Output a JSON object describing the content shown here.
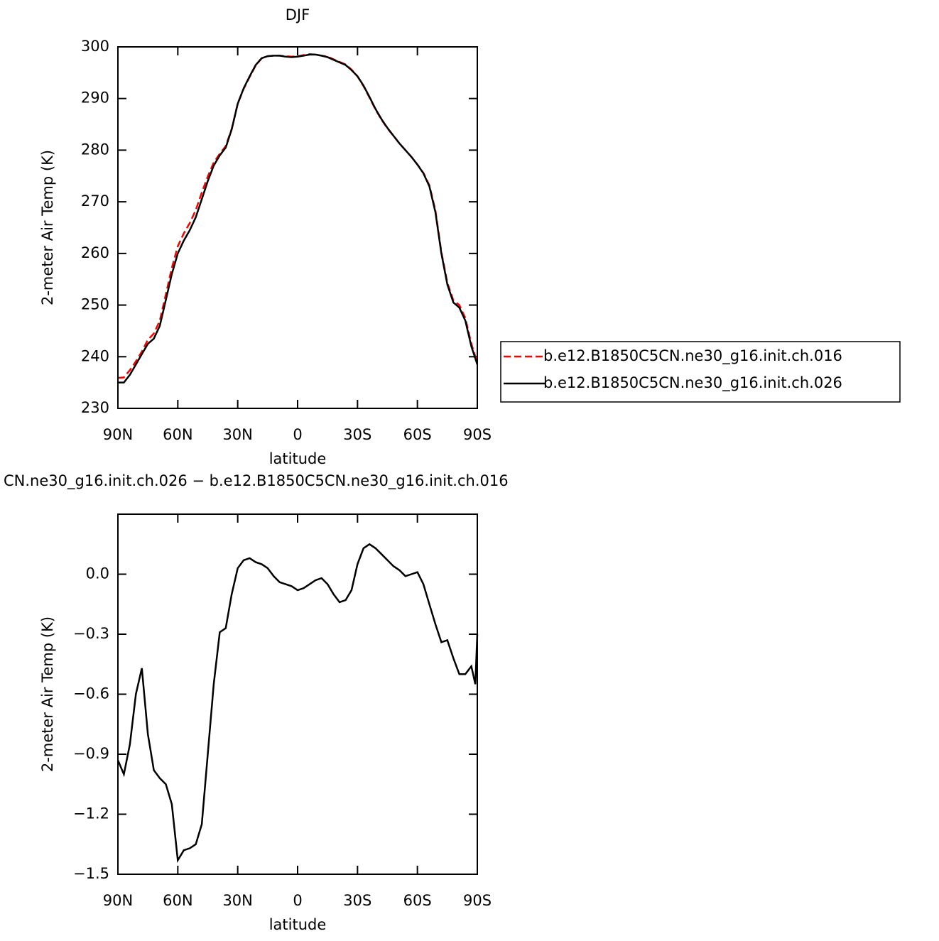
{
  "chart_data": [
    {
      "type": "line",
      "title": "DJF",
      "x_label": "latitude",
      "y_label": "2-meter Air Temp (K)",
      "x": [
        90,
        87,
        84,
        81,
        78,
        75,
        72,
        69,
        66,
        63,
        60,
        57,
        54,
        51,
        48,
        45,
        42,
        39,
        36,
        33,
        30,
        27,
        24,
        21,
        18,
        15,
        12,
        9,
        6,
        3,
        0,
        -3,
        -6,
        -9,
        -12,
        -15,
        -18,
        -21,
        -24,
        -27,
        -30,
        -33,
        -36,
        -39,
        -42,
        -45,
        -48,
        -51,
        -54,
        -57,
        -60,
        -63,
        -66,
        -69,
        -72,
        -75,
        -78,
        -81,
        -84,
        -87,
        -90
      ],
      "xlim": [
        90,
        -90
      ],
      "xticks": [
        {
          "value": 90,
          "label": "90N"
        },
        {
          "value": 60,
          "label": "60N"
        },
        {
          "value": 30,
          "label": "30N"
        },
        0,
        {
          "value": -30,
          "label": "30S"
        },
        {
          "value": -60,
          "label": "60S"
        },
        {
          "value": -90,
          "label": "90S"
        }
      ],
      "ylim": [
        230,
        300
      ],
      "yticks": [
        230,
        240,
        250,
        260,
        270,
        280,
        290,
        300
      ],
      "legend": "outside-right",
      "series": [
        {
          "name": "b.e12.B1850C5CN.ne30_g16.init.ch.016",
          "color": "#ff0000",
          "dash": "dashed",
          "values": [
            235.9,
            236.0,
            237.4,
            239.1,
            241.0,
            243.3,
            244.5,
            247.0,
            252.1,
            257.2,
            261.4,
            263.9,
            265.9,
            268.4,
            271.8,
            274.9,
            277.6,
            279.3,
            280.8,
            284.1,
            289.0,
            291.9,
            294.2,
            296.4,
            297.8,
            298.2,
            298.3,
            298.3,
            298.2,
            298.1,
            298.2,
            298.4,
            298.6,
            298.5,
            298.3,
            298.1,
            297.6,
            297.1,
            296.6,
            295.6,
            294.3,
            292.4,
            290.2,
            287.9,
            285.9,
            284.2,
            282.8,
            281.3,
            280.0,
            278.7,
            277.2,
            275.6,
            273.2,
            268.3,
            260.3,
            254.3,
            250.9,
            250.0,
            247.5,
            242.5,
            238.8
          ]
        },
        {
          "name": "b.e12.B1850C5CN.ne30_g16.init.ch.026",
          "color": "#000000",
          "dash": "solid",
          "values": [
            235.0,
            235.0,
            236.5,
            238.5,
            240.5,
            242.5,
            243.5,
            246.0,
            251.0,
            256.0,
            260.0,
            262.5,
            264.5,
            267.0,
            270.5,
            274.0,
            277.0,
            279.0,
            280.5,
            284.0,
            289.0,
            292.0,
            294.3,
            296.5,
            297.8,
            298.2,
            298.3,
            298.3,
            298.1,
            298.0,
            298.1,
            298.3,
            298.5,
            298.5,
            298.3,
            298.0,
            297.5,
            297.0,
            296.5,
            295.5,
            294.3,
            292.5,
            290.3,
            288.0,
            286.0,
            284.3,
            282.8,
            281.3,
            280.0,
            278.7,
            277.2,
            275.5,
            273.0,
            268.0,
            260.0,
            254.0,
            250.5,
            249.5,
            247.0,
            242.0,
            238.5
          ]
        }
      ]
    },
    {
      "type": "line",
      "title": "CN.ne30_g16.init.ch.026 − b.e12.B1850C5CN.ne30_g16.init.ch.016",
      "x_label": "latitude",
      "y_label": "2-meter Air Temp (K)",
      "x": [
        90,
        87,
        84,
        81,
        78,
        75,
        72,
        69,
        66,
        63,
        60,
        57,
        54,
        51,
        48,
        45,
        42,
        39,
        36,
        33,
        30,
        27,
        24,
        21,
        18,
        15,
        12,
        9,
        6,
        3,
        0,
        -3,
        -6,
        -9,
        -12,
        -15,
        -18,
        -21,
        -24,
        -27,
        -30,
        -33,
        -36,
        -39,
        -42,
        -45,
        -48,
        -51,
        -54,
        -57,
        -60,
        -63,
        -66,
        -69,
        -72,
        -75,
        -78,
        -81,
        -84,
        -87,
        -89,
        -90
      ],
      "xlim": [
        90,
        -90
      ],
      "xticks": [
        {
          "value": 90,
          "label": "90N"
        },
        {
          "value": 60,
          "label": "60N"
        },
        {
          "value": 30,
          "label": "30N"
        },
        0,
        {
          "value": -30,
          "label": "30S"
        },
        {
          "value": -60,
          "label": "60S"
        },
        {
          "value": -90,
          "label": "90S"
        }
      ],
      "ylim": [
        -1.5,
        0.3
      ],
      "yticks": [
        {
          "value": -1.5,
          "label": "−1.5"
        },
        {
          "value": -1.2,
          "label": "−1.2"
        },
        {
          "value": -0.9,
          "label": "−0.9"
        },
        {
          "value": -0.6,
          "label": "−0.6"
        },
        {
          "value": -0.3,
          "label": "−0.3"
        },
        {
          "value": 0,
          "label": "0.0"
        }
      ],
      "series": [
        {
          "color": "#000000",
          "dash": "solid",
          "values": [
            -0.93,
            -1.0,
            -0.85,
            -0.6,
            -0.47,
            -0.8,
            -0.98,
            -1.02,
            -1.05,
            -1.15,
            -1.43,
            -1.38,
            -1.37,
            -1.35,
            -1.25,
            -0.9,
            -0.55,
            -0.29,
            -0.27,
            -0.1,
            0.03,
            0.07,
            0.08,
            0.06,
            0.05,
            0.03,
            -0.01,
            -0.04,
            -0.05,
            -0.06,
            -0.08,
            -0.07,
            -0.05,
            -0.03,
            -0.02,
            -0.05,
            -0.1,
            -0.14,
            -0.13,
            -0.08,
            0.05,
            0.13,
            0.15,
            0.13,
            0.1,
            0.07,
            0.04,
            0.02,
            -0.01,
            0.0,
            0.01,
            -0.05,
            -0.15,
            -0.25,
            -0.34,
            -0.33,
            -0.42,
            -0.5,
            -0.5,
            -0.46,
            -0.55,
            -0.3
          ]
        }
      ]
    }
  ]
}
